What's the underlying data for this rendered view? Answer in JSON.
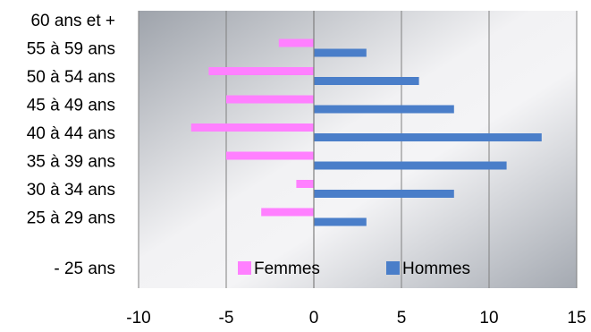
{
  "chart_data": {
    "type": "bar",
    "orientation": "horizontal",
    "categories": [
      "60 ans et +",
      "55 à 59 ans",
      "50 à 54 ans",
      "45 à 49 ans",
      "40 à 44 ans",
      "35 à 39 ans",
      "30 à 34 ans",
      "25 à 29 ans",
      "- 25 ans"
    ],
    "series": [
      {
        "name": "Femmes",
        "values": [
          0,
          -2,
          -6,
          -5,
          -7,
          -5,
          -1,
          -3,
          0
        ],
        "color": "#ff80ff"
      },
      {
        "name": "Hommes",
        "values": [
          0,
          3,
          6,
          8,
          13,
          11,
          8,
          3,
          0
        ],
        "color": "#4a7ec9"
      }
    ],
    "xlim": [
      -10,
      15
    ],
    "x_ticks": [
      "-10",
      "-5",
      "0",
      "5",
      "10",
      "15"
    ],
    "grid": true,
    "legend_position": "bottom-inside",
    "title": "",
    "xlabel": "",
    "ylabel": ""
  }
}
